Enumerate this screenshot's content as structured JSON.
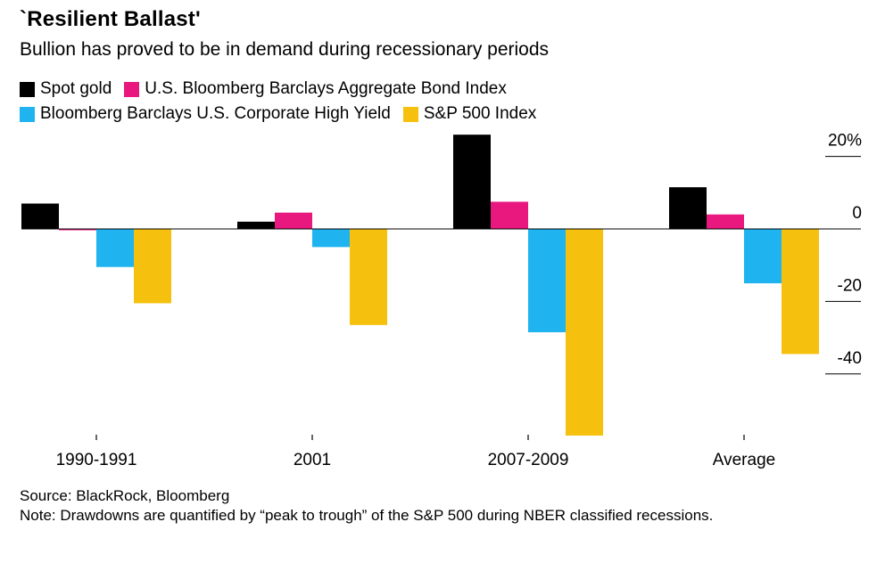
{
  "header": {
    "title": "`Resilient Ballast'",
    "subtitle": "Bullion has proved to be in demand during recessionary periods"
  },
  "footer": {
    "source": "Source: BlackRock, Bloomberg",
    "note": "Note: Drawdowns are quantified by “peak to trough” of the S&P 500 during NBER classified recessions."
  },
  "chart_data": {
    "type": "bar",
    "title": "`Resilient Ballast'",
    "subtitle": "Bullion has proved to be in demand during recessionary periods",
    "categories": [
      "1990-1991",
      "2001",
      "2007-2009",
      "Average"
    ],
    "series": [
      {
        "name": "Spot gold",
        "color": "#000000",
        "values": [
          7,
          2,
          26,
          11.5
        ]
      },
      {
        "name": "U.S. Bloomberg Barclays Aggregate Bond Index",
        "color": "#e8187e",
        "values": [
          -0.3,
          4.5,
          7.5,
          4
        ]
      },
      {
        "name": "Bloomberg Barclays U.S. Corporate High Yield",
        "color": "#1fb3f0",
        "values": [
          -10.5,
          -5,
          -28.5,
          -15
        ]
      },
      {
        "name": "S&P 500 Index",
        "color": "#f6c10e",
        "values": [
          -20.5,
          -26.5,
          -57,
          -34.5
        ]
      }
    ],
    "y_ticks": [
      {
        "value": 20,
        "label": "20%"
      },
      {
        "value": 0,
        "label": "0"
      },
      {
        "value": -20,
        "label": "-20"
      },
      {
        "value": -40,
        "label": "-40"
      }
    ],
    "ylim": [
      -57,
      26
    ],
    "y_axis_position": "right",
    "grid": false,
    "legend_position": "top"
  }
}
